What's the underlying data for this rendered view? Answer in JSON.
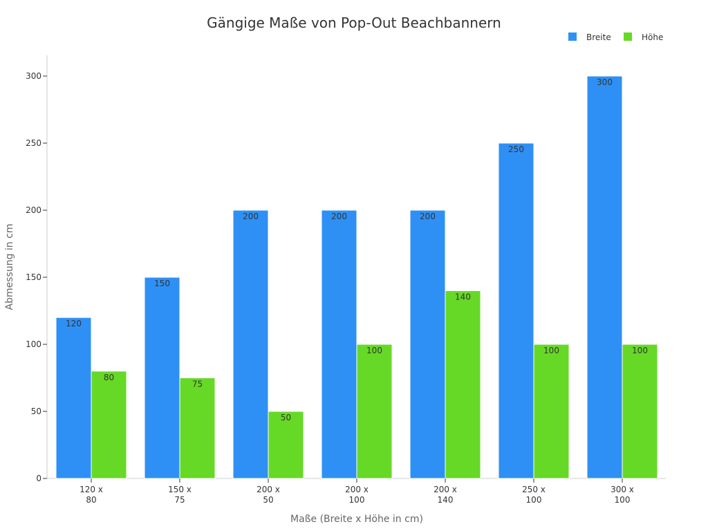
{
  "chart_data": {
    "type": "bar",
    "title": "Gängige Maße von Pop-Out Beachbannern",
    "xlabel": "Maße (Breite x Höhe in cm)",
    "ylabel": "Abmessung in cm",
    "categories": [
      [
        "120 x",
        "80"
      ],
      [
        "150 x",
        "75"
      ],
      [
        "200 x",
        "50"
      ],
      [
        "200 x",
        "100"
      ],
      [
        "200 x",
        "140"
      ],
      [
        "250 x",
        "100"
      ],
      [
        "300 x",
        "100"
      ]
    ],
    "series": [
      {
        "name": "Breite",
        "color": "#2e90f5",
        "values": [
          120,
          150,
          200,
          200,
          200,
          250,
          300
        ]
      },
      {
        "name": "Höhe",
        "color": "#66d926",
        "values": [
          80,
          75,
          50,
          100,
          140,
          100,
          100
        ]
      }
    ],
    "ylim": [
      0,
      315
    ],
    "yticks": [
      0,
      50,
      100,
      150,
      200,
      250,
      300
    ],
    "grid": false,
    "legend": "top-right",
    "data_labels": true
  }
}
